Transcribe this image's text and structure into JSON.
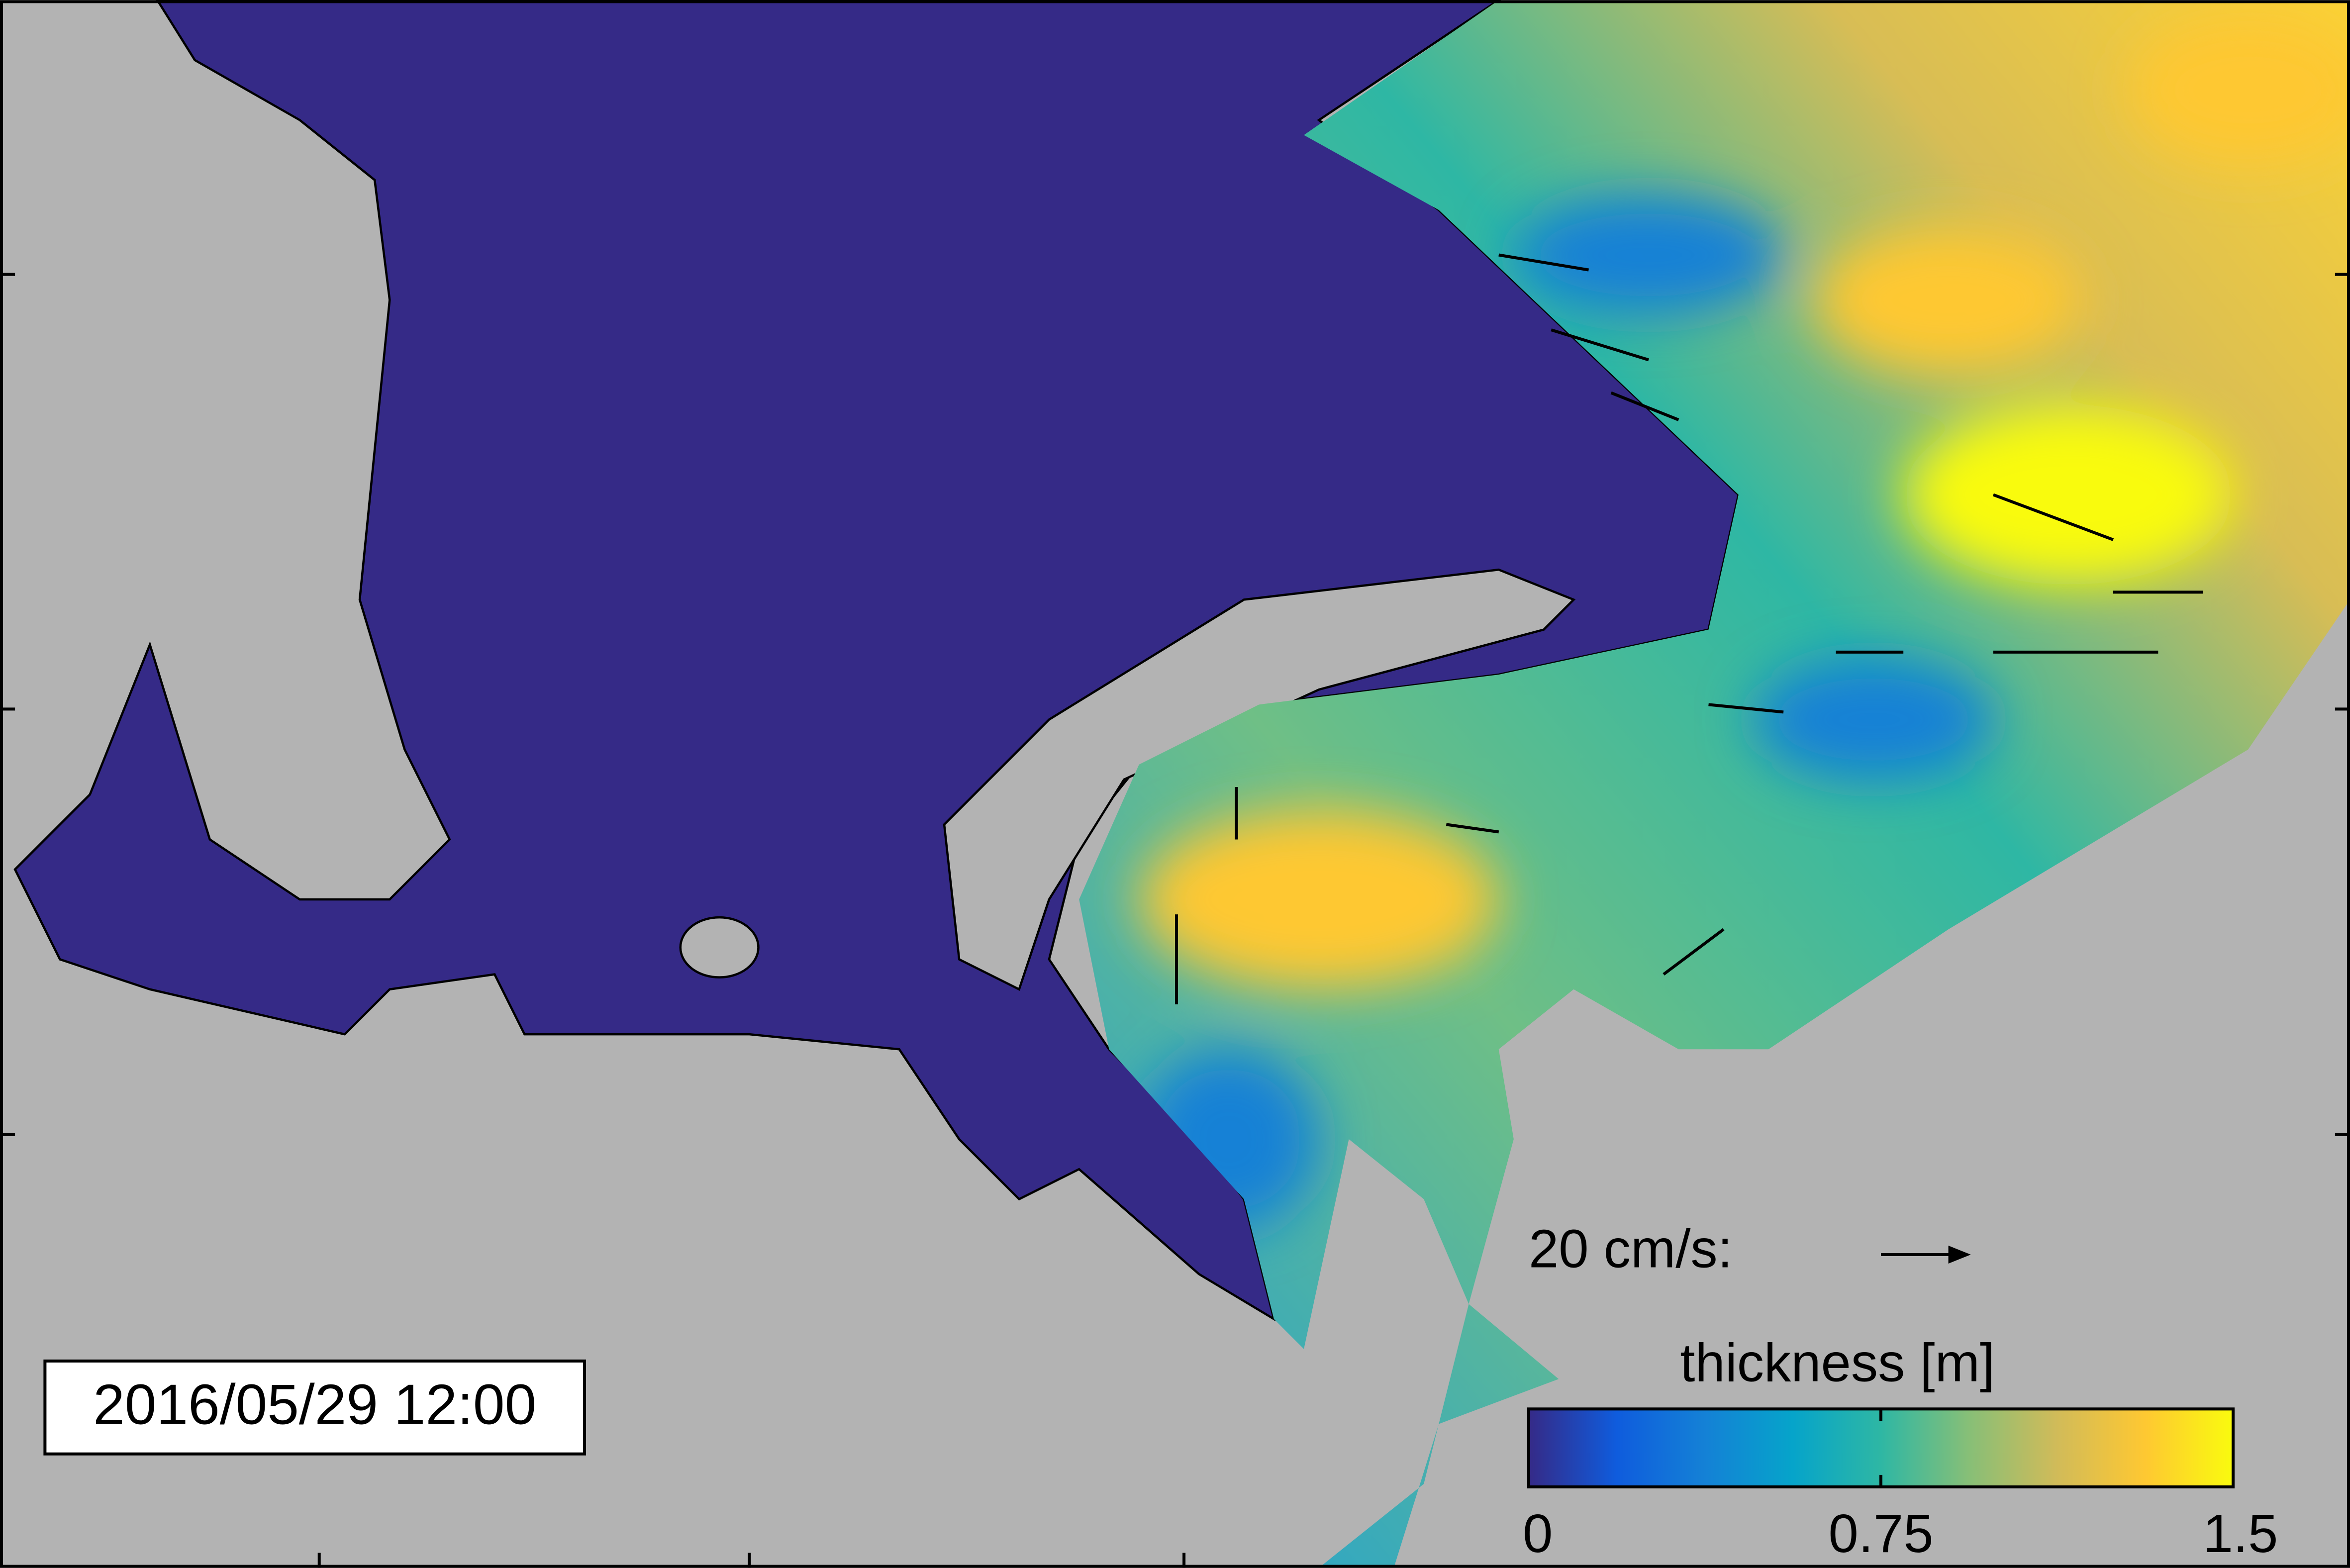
{
  "timestamp": "2016/05/29 12:00",
  "velocity_scale": {
    "label": "20 cm/s:"
  },
  "colorbar": {
    "label": "thickness [m]",
    "lim": [
      0,
      1.5
    ],
    "ticks": [
      0,
      0.75,
      1.5
    ],
    "colors": [
      "#352a87",
      "#0f5cdd",
      "#1481d6",
      "#06a4ca",
      "#2eb7a4",
      "#87bf77",
      "#d1bb59",
      "#fec832",
      "#f9fb0e"
    ]
  }
}
